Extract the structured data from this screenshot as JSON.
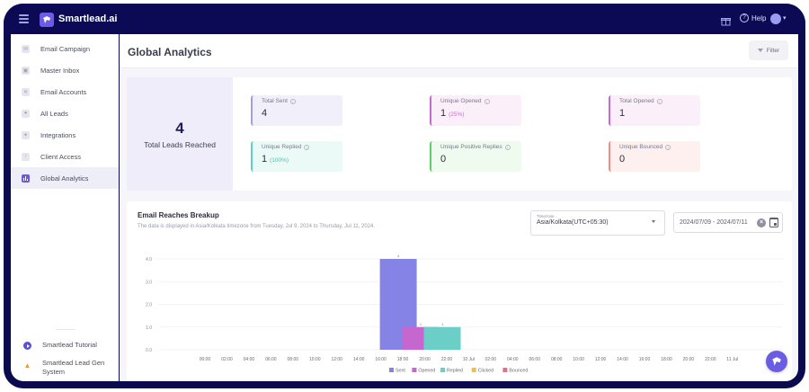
{
  "app": {
    "name": "Smartlead.ai",
    "help_label": "Help"
  },
  "sidebar": {
    "items": [
      {
        "label": "Email Campaign",
        "icon": "campaign-icon"
      },
      {
        "label": "Master Inbox",
        "icon": "inbox-icon"
      },
      {
        "label": "Email Accounts",
        "icon": "mail-icon"
      },
      {
        "label": "All Leads",
        "icon": "leads-icon"
      },
      {
        "label": "Integrations",
        "icon": "puzzle-icon"
      },
      {
        "label": "Client Access",
        "icon": "client-icon"
      },
      {
        "label": "Global Analytics",
        "icon": "bar-chart-icon",
        "active": true
      }
    ],
    "bottom": [
      {
        "label": "Smartlead Tutorial",
        "icon": "play-icon"
      },
      {
        "label": "Smartlead Lead Gen System",
        "icon": "fire-icon"
      }
    ]
  },
  "header": {
    "title": "Global Analytics",
    "filter_label": "Filter"
  },
  "summary": {
    "total_leads_value": "4",
    "total_leads_label": "Total Leads Reached",
    "stats": [
      {
        "label": "Total Sent",
        "value": "4",
        "pct": "",
        "border": "#a99be0",
        "bg": "#f1effa",
        "pct_color": ""
      },
      {
        "label": "Unique Opened",
        "value": "1",
        "pct": "(25%)",
        "border": "#c56ad0",
        "bg": "#fbeffa",
        "pct_color": "#c56ad0"
      },
      {
        "label": "Total Opened",
        "value": "1",
        "pct": "",
        "border": "#c56ad0",
        "bg": "#fbeffa",
        "pct_color": ""
      },
      {
        "label": "Unique Replied",
        "value": "1",
        "pct": "(100%)",
        "border": "#5fd1c0",
        "bg": "#ebfaf6",
        "pct_color": "#57b9aa"
      },
      {
        "label": "Unique Positive Replies",
        "value": "0",
        "pct": "",
        "border": "#5fcf6a",
        "bg": "#eefbee",
        "pct_color": ""
      },
      {
        "label": "Unique Bounced",
        "value": "0",
        "pct": "",
        "border": "#ee8c8c",
        "bg": "#fdf0ef",
        "pct_color": ""
      }
    ]
  },
  "chart_section": {
    "title": "Email Reaches Breakup",
    "subtitle": "The data is displayed in Asia/Kolkata timezone from Tuesday, Jul 9, 2024 to Thursday, Jul 11, 2024.",
    "timezone_caption": "Timezone",
    "timezone_value": "Asia/Kolkata(UTC+05:30)",
    "date_range": "2024/07/09 - 2024/07/11"
  },
  "chart_data": {
    "type": "bar",
    "title": "Email Reaches Breakup",
    "xlabel": "",
    "ylabel": "",
    "ylim": [
      0,
      4
    ],
    "yticks": [
      "0.0",
      "1.0",
      "2.0",
      "3.0",
      "4.0"
    ],
    "categories": [
      "00:00",
      "02:00",
      "04:00",
      "06:00",
      "08:00",
      "10:00",
      "12:00",
      "14:00",
      "16:00",
      "18:00",
      "20:00",
      "22:00",
      "10 Jul",
      "02:00",
      "04:00",
      "06:00",
      "08:00",
      "10:00",
      "12:00",
      "14:00",
      "16:00",
      "18:00",
      "20:00",
      "22:00",
      "11 Jul"
    ],
    "series": [
      {
        "name": "Sent",
        "color": "#8584e6",
        "values": [
          0,
          0,
          0,
          0,
          0,
          0,
          0,
          0,
          4,
          0,
          0,
          0,
          0,
          0,
          0,
          0,
          0,
          0,
          0,
          0,
          0,
          0,
          0,
          0,
          0
        ]
      },
      {
        "name": "Opened",
        "color": "#c667cf",
        "values": [
          0,
          0,
          0,
          0,
          0,
          0,
          0,
          0,
          0,
          1,
          0,
          0,
          0,
          0,
          0,
          0,
          0,
          0,
          0,
          0,
          0,
          0,
          0,
          0,
          0
        ]
      },
      {
        "name": "Replied",
        "color": "#6bcfc8",
        "values": [
          0,
          0,
          0,
          0,
          0,
          0,
          0,
          0,
          0,
          0,
          1,
          0,
          0,
          0,
          0,
          0,
          0,
          0,
          0,
          0,
          0,
          0,
          0,
          0,
          0
        ]
      },
      {
        "name": "Clicked",
        "color": "#f2c13c",
        "values": [
          0,
          0,
          0,
          0,
          0,
          0,
          0,
          0,
          0,
          0,
          0,
          0,
          0,
          0,
          0,
          0,
          0,
          0,
          0,
          0,
          0,
          0,
          0,
          0,
          0
        ]
      },
      {
        "name": "Bounced",
        "color": "#e4708c",
        "values": [
          0,
          0,
          0,
          0,
          0,
          0,
          0,
          0,
          0,
          0,
          0,
          0,
          0,
          0,
          0,
          0,
          0,
          0,
          0,
          0,
          0,
          0,
          0,
          0,
          0
        ]
      }
    ],
    "data_labels": [
      {
        "x": "16:00-18:00",
        "series": "Sent",
        "label": "4"
      },
      {
        "x": "20:00",
        "series": "Opened",
        "label": "1"
      },
      {
        "x": "22:00-10 Jul",
        "series": "Replied",
        "label": "1"
      }
    ],
    "grid": true,
    "legend_position": "bottom"
  }
}
